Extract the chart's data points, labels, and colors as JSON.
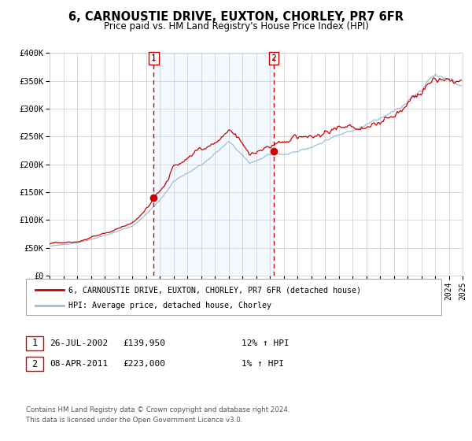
{
  "title": "6, CARNOUSTIE DRIVE, EUXTON, CHORLEY, PR7 6FR",
  "subtitle": "Price paid vs. HM Land Registry's House Price Index (HPI)",
  "legend_line1": "6, CARNOUSTIE DRIVE, EUXTON, CHORLEY, PR7 6FR (detached house)",
  "legend_line2": "HPI: Average price, detached house, Chorley",
  "transaction1_date": "26-JUL-2002",
  "transaction1_price": 139950,
  "transaction1_label": "12% ↑ HPI",
  "transaction2_date": "08-APR-2011",
  "transaction2_price": 223000,
  "transaction2_label": "1% ↑ HPI",
  "marker1_date_num": 2002.57,
  "marker2_date_num": 2011.27,
  "hpi_color": "#9bbfd4",
  "price_color": "#cc0000",
  "marker_color": "#cc0000",
  "vline_color": "#cc0000",
  "shade_color": "#ddeeff",
  "grid_color": "#cccccc",
  "background_color": "#ffffff",
  "y_ticks": [
    0,
    50000,
    100000,
    150000,
    200000,
    250000,
    300000,
    350000,
    400000
  ],
  "y_tick_labels": [
    "£0",
    "£50K",
    "£100K",
    "£150K",
    "£200K",
    "£250K",
    "£300K",
    "£350K",
    "£400K"
  ],
  "x_start_year": 1995,
  "x_end_year": 2025,
  "footer_line1": "Contains HM Land Registry data © Crown copyright and database right 2024.",
  "footer_line2": "This data is licensed under the Open Government Licence v3.0."
}
